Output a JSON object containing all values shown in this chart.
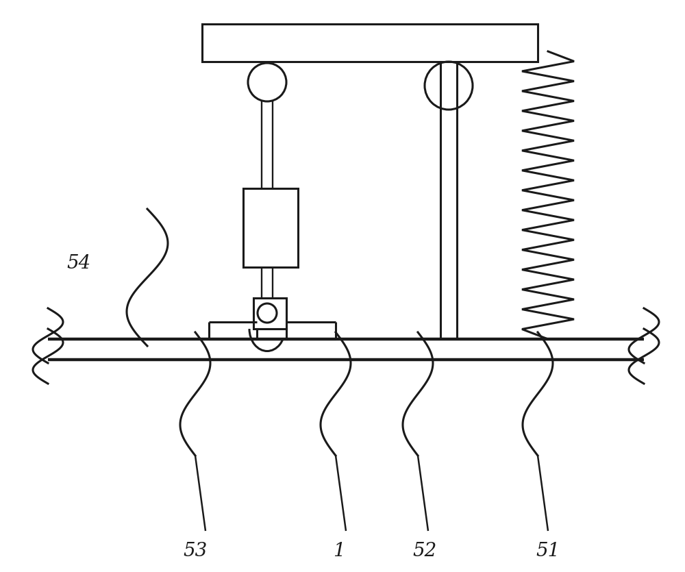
{
  "bg_color": "#ffffff",
  "line_color": "#1a1a1a",
  "lw": 2.2,
  "fig_width": 10.0,
  "fig_height": 8.35
}
